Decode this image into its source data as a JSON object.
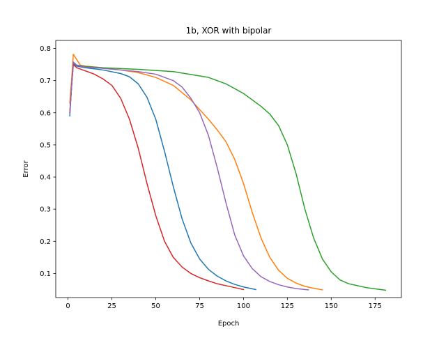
{
  "chart_data": {
    "type": "line",
    "title": "1b, XOR with bipolar",
    "xlabel": "Epoch",
    "ylabel": "Error",
    "xlim": [
      -7,
      190
    ],
    "ylim": [
      0.025,
      0.825
    ],
    "xticks": [
      0,
      25,
      50,
      75,
      100,
      125,
      150,
      175
    ],
    "yticks": [
      0.1,
      0.2,
      0.3,
      0.4,
      0.5,
      0.6,
      0.7,
      0.8
    ],
    "grid": false,
    "legend": "none",
    "series": [
      {
        "color": "#1f77b4",
        "x": [
          1,
          2,
          3,
          5,
          10,
          20,
          30,
          35,
          40,
          45,
          50,
          55,
          60,
          65,
          70,
          75,
          80,
          85,
          90,
          95,
          100,
          107
        ],
        "y": [
          0.59,
          0.68,
          0.752,
          0.745,
          0.74,
          0.733,
          0.722,
          0.712,
          0.69,
          0.648,
          0.58,
          0.48,
          0.37,
          0.27,
          0.195,
          0.145,
          0.113,
          0.092,
          0.077,
          0.066,
          0.058,
          0.05
        ]
      },
      {
        "color": "#ff7f0e",
        "x": [
          1,
          2,
          3,
          5,
          7,
          10,
          20,
          30,
          40,
          50,
          60,
          70,
          80,
          85,
          90,
          95,
          100,
          105,
          110,
          115,
          120,
          125,
          130,
          135,
          140,
          145
        ],
        "y": [
          0.63,
          0.7,
          0.782,
          0.765,
          0.748,
          0.745,
          0.74,
          0.733,
          0.725,
          0.71,
          0.685,
          0.64,
          0.58,
          0.547,
          0.51,
          0.455,
          0.38,
          0.29,
          0.21,
          0.15,
          0.11,
          0.085,
          0.07,
          0.06,
          0.054,
          0.049
        ]
      },
      {
        "color": "#2ca02c",
        "x": [
          1,
          2,
          3,
          5,
          10,
          20,
          40,
          60,
          80,
          90,
          100,
          110,
          115,
          120,
          125,
          130,
          135,
          140,
          145,
          150,
          155,
          160,
          170,
          181
        ],
        "y": [
          0.6,
          0.68,
          0.755,
          0.748,
          0.744,
          0.74,
          0.735,
          0.728,
          0.71,
          0.69,
          0.66,
          0.62,
          0.596,
          0.56,
          0.5,
          0.41,
          0.3,
          0.21,
          0.145,
          0.105,
          0.08,
          0.068,
          0.056,
          0.048
        ]
      },
      {
        "color": "#d62728",
        "x": [
          1,
          2,
          3,
          5,
          10,
          15,
          20,
          25,
          30,
          35,
          40,
          45,
          50,
          55,
          60,
          65,
          70,
          75,
          80,
          85,
          90,
          95,
          100
        ],
        "y": [
          0.6,
          0.68,
          0.75,
          0.74,
          0.73,
          0.72,
          0.705,
          0.685,
          0.645,
          0.58,
          0.49,
          0.38,
          0.28,
          0.2,
          0.15,
          0.12,
          0.1,
          0.087,
          0.077,
          0.068,
          0.062,
          0.056,
          0.05
        ]
      },
      {
        "color": "#9467bd",
        "x": [
          1,
          2,
          3,
          5,
          10,
          20,
          30,
          40,
          50,
          60,
          65,
          70,
          75,
          80,
          85,
          90,
          95,
          100,
          105,
          110,
          115,
          120,
          125,
          130,
          137
        ],
        "y": [
          0.6,
          0.68,
          0.758,
          0.748,
          0.742,
          0.738,
          0.733,
          0.728,
          0.72,
          0.7,
          0.68,
          0.645,
          0.6,
          0.53,
          0.43,
          0.32,
          0.22,
          0.155,
          0.115,
          0.09,
          0.075,
          0.065,
          0.058,
          0.053,
          0.049
        ]
      }
    ]
  }
}
